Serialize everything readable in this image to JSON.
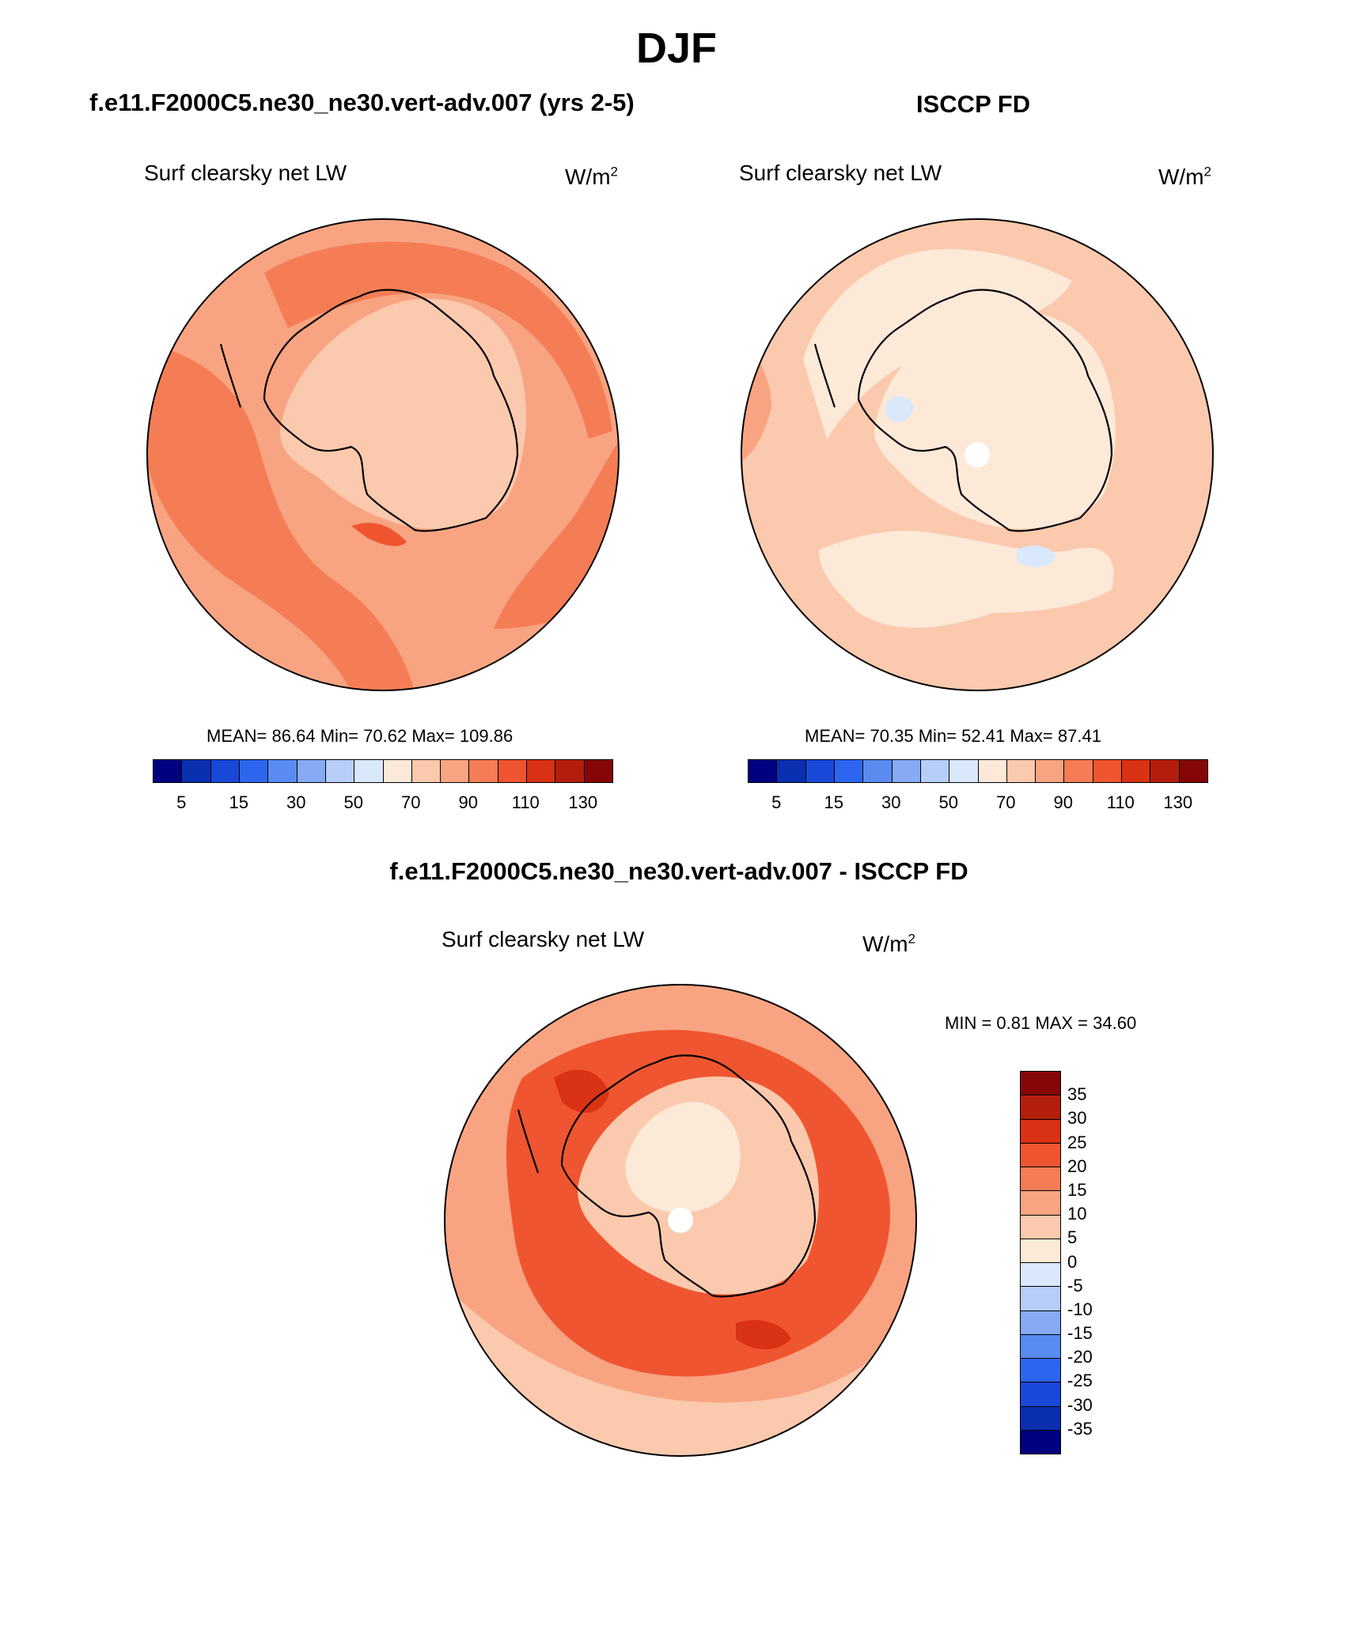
{
  "page_title": "DJF",
  "panels": [
    {
      "title": "f.e11.F2000C5.ne30_ne30.vert-adv.007 (yrs 2-5)",
      "variable": "Surf clearsky net LW",
      "units_base": "W/m",
      "units_exp": "2",
      "stats": {
        "mean_label": "MEAN=",
        "mean": "86.64",
        "min_label": "Min=",
        "min": "70.62",
        "max_label": "Max=",
        "max": "109.86"
      },
      "colorbar": {
        "colors": [
          "#000080",
          "#0a2fb0",
          "#1848d8",
          "#2d66ee",
          "#5a8bf0",
          "#86aaf4",
          "#b6cdf8",
          "#dae8fb",
          "#fde9d8",
          "#fbc9ad",
          "#f8a482",
          "#f57d55",
          "#ef5530",
          "#d93215",
          "#b31e0c",
          "#850606"
        ],
        "tick_labels": [
          "5",
          "15",
          "30",
          "50",
          "70",
          "90",
          "110",
          "130"
        ]
      },
      "map_fill": {
        "base": "#f8a482",
        "polar": "#fbc9ad",
        "ring": "#f57d55",
        "high": "#ef5530"
      }
    },
    {
      "title": "ISCCP FD",
      "variable": "Surf clearsky net LW",
      "units_base": "W/m",
      "units_exp": "2",
      "stats": {
        "mean_label": "MEAN=",
        "mean": "70.35",
        "min_label": "Min=",
        "min": "52.41",
        "max_label": "Max=",
        "max": "87.41"
      },
      "colorbar": {
        "colors": [
          "#000080",
          "#0a2fb0",
          "#1848d8",
          "#2d66ee",
          "#5a8bf0",
          "#86aaf4",
          "#b6cdf8",
          "#dae8fb",
          "#fde9d8",
          "#fbc9ad",
          "#f8a482",
          "#f57d55",
          "#ef5530",
          "#d93215",
          "#b31e0c",
          "#850606"
        ],
        "tick_labels": [
          "5",
          "15",
          "30",
          "50",
          "70",
          "90",
          "110",
          "130"
        ]
      },
      "map_fill": {
        "base": "#fbc9ad",
        "polar": "#fde9d8",
        "low": "#dae8fb",
        "accent": "#f8a482"
      }
    },
    {
      "title": "f.e11.F2000C5.ne30_ne30.vert-adv.007 - ISCCP FD",
      "variable": "Surf clearsky net LW",
      "units_base": "W/m",
      "units_exp": "2",
      "stats": {
        "min_label": "MIN =",
        "min": "0.81",
        "max_label": "MAX =",
        "max": "34.60"
      },
      "colorbar": {
        "colors": [
          "#000080",
          "#0a2fb0",
          "#1848d8",
          "#2d66ee",
          "#5a8bf0",
          "#86aaf4",
          "#b6cdf8",
          "#dae8fb",
          "#fde9d8",
          "#fbc9ad",
          "#f8a482",
          "#f57d55",
          "#ef5530",
          "#d93215",
          "#b31e0c",
          "#850606"
        ],
        "tick_labels": [
          "35",
          "30",
          "25",
          "20",
          "15",
          "10",
          "5",
          "0",
          "-5",
          "-10",
          "-15",
          "-20",
          "-25",
          "-30",
          "-35"
        ]
      },
      "map_fill": {
        "base": "#f8a482",
        "ring": "#ef5530",
        "polar": "#fbc9ad",
        "core": "#fde9d8",
        "high": "#d93215"
      }
    }
  ]
}
